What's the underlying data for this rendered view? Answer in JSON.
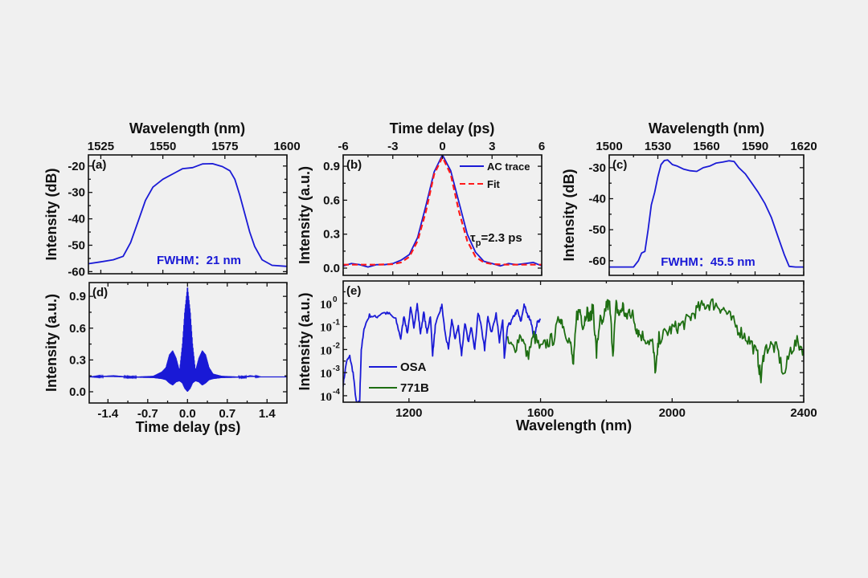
{
  "figure": {
    "background": "#f0f0f0"
  },
  "chart_data": [
    {
      "panel": "(a)",
      "type": "line",
      "xlabel": "Wavelength (nm)",
      "xaxis_position": "top",
      "ylabel": "Intensity (dB)",
      "xlim": [
        1520,
        1600
      ],
      "ylim": [
        -60.8,
        -15.8
      ],
      "xticks": [
        1525,
        1550,
        1575,
        1600
      ],
      "xtick_labels": [
        "1525",
        "1550",
        "1575",
        "1600"
      ],
      "yticks": [
        -20,
        -30,
        -40,
        -50,
        -60
      ],
      "ytick_labels": [
        "-20",
        "-30",
        "-40",
        "-50",
        "-60"
      ],
      "annotation": {
        "text": "FWHM：21 nm",
        "color": "#1a1ad6"
      },
      "series": [
        {
          "color": "#1a1ad6",
          "x": [
            1520,
            1525,
            1530,
            1534,
            1537,
            1540,
            1543,
            1546,
            1550,
            1555,
            1558,
            1562,
            1566,
            1570,
            1574,
            1577,
            1579,
            1581,
            1583,
            1585,
            1587,
            1590,
            1594,
            1600
          ],
          "y": [
            -57,
            -56.3,
            -55.5,
            -54.2,
            -49,
            -41,
            -33,
            -28,
            -25,
            -22.5,
            -21,
            -20.6,
            -19.2,
            -19.1,
            -20.2,
            -21.8,
            -25,
            -31,
            -38,
            -45,
            -50.5,
            -55.5,
            -57.6,
            -58
          ]
        }
      ]
    },
    {
      "panel": "(b)",
      "type": "line",
      "xlabel": "Time delay (ps)",
      "xaxis_position": "top",
      "ylabel": "Intensity (a.u.)",
      "xlim": [
        -6,
        6
      ],
      "ylim": [
        -0.064,
        1.0
      ],
      "xticks": [
        -6,
        -3,
        0,
        3,
        6
      ],
      "xtick_labels": [
        "-6",
        "-3",
        "0",
        "3",
        "6"
      ],
      "yticks": [
        0,
        0.3,
        0.6,
        0.9
      ],
      "ytick_labels": [
        "0.0",
        "0.3",
        "0.6",
        "0.9"
      ],
      "annotation": {
        "symbol": "τ",
        "subscript": "p",
        "text": "=2.3 ps",
        "color": "#111111"
      },
      "legend": {
        "position": "top-right"
      },
      "series": [
        {
          "name": "AC trace",
          "color": "#1a1ad6",
          "style": "solid",
          "x": [
            -6,
            -5.5,
            -5,
            -4.5,
            -4,
            -3.5,
            -3,
            -2.5,
            -2,
            -1.5,
            -1,
            -0.5,
            0,
            0.5,
            1,
            1.5,
            2,
            2.5,
            3,
            3.5,
            4,
            4.5,
            5,
            5.5,
            6
          ],
          "y": [
            0.02,
            0.04,
            0.03,
            0.01,
            0.03,
            0.03,
            0.04,
            0.07,
            0.12,
            0.27,
            0.55,
            0.85,
            1.0,
            0.86,
            0.58,
            0.3,
            0.14,
            0.06,
            0.04,
            0.02,
            0.04,
            0.03,
            0.04,
            0.05,
            0.02
          ]
        },
        {
          "name": "Fit",
          "color": "#ff1a1a",
          "style": "dashed",
          "x": [
            -6,
            -5,
            -4,
            -3,
            -2.5,
            -2,
            -1.5,
            -1,
            -0.5,
            0,
            0.5,
            1,
            1.5,
            2,
            2.5,
            3,
            4,
            5,
            6
          ],
          "y": [
            0.03,
            0.03,
            0.03,
            0.035,
            0.05,
            0.1,
            0.24,
            0.5,
            0.83,
            0.98,
            0.83,
            0.5,
            0.24,
            0.1,
            0.05,
            0.035,
            0.03,
            0.03,
            0.03
          ]
        }
      ]
    },
    {
      "panel": "(c)",
      "type": "line",
      "xlabel": "Wavelength (nm)",
      "xaxis_position": "top",
      "ylabel": "Intensity (dB)",
      "xlim": [
        1500,
        1620
      ],
      "ylim": [
        -64.7,
        -25.9
      ],
      "xticks": [
        1500,
        1530,
        1560,
        1590,
        1620
      ],
      "xtick_labels": [
        "1500",
        "1530",
        "1560",
        "1590",
        "1620"
      ],
      "yticks": [
        -30,
        -40,
        -50,
        -60
      ],
      "ytick_labels": [
        "-30",
        "-40",
        "-50",
        "-60"
      ],
      "annotation": {
        "text": "FWHM：45.5 nm",
        "color": "#1a1ad6"
      },
      "series": [
        {
          "color": "#1a1ad6",
          "x": [
            1500,
            1515,
            1518,
            1520,
            1522,
            1524,
            1526,
            1528,
            1530,
            1532,
            1534,
            1536,
            1539,
            1542,
            1546,
            1550,
            1554,
            1558,
            1562,
            1566,
            1570,
            1574,
            1577,
            1580,
            1584,
            1588,
            1592,
            1596,
            1600,
            1604,
            1608,
            1611,
            1615,
            1620
          ],
          "y": [
            -62,
            -62,
            -60,
            -57.5,
            -57,
            -50,
            -42,
            -38,
            -33,
            -29,
            -27.7,
            -27.5,
            -29,
            -29.5,
            -30.5,
            -31,
            -31.2,
            -30,
            -29.5,
            -28.5,
            -28.2,
            -27.8,
            -28,
            -30,
            -32,
            -35,
            -38,
            -41.5,
            -46,
            -52,
            -58,
            -61.8,
            -62,
            -62
          ]
        }
      ]
    },
    {
      "panel": "(d)",
      "type": "area",
      "xlabel": "Time delay (ps)",
      "xaxis_position": "bottom",
      "ylabel": "Intensity (a.u.)",
      "xlim": [
        -1.73,
        1.75
      ],
      "ylim": [
        -0.106,
        1.03
      ],
      "xticks": [
        -1.4,
        -0.7,
        0,
        0.7,
        1.4
      ],
      "xtick_labels": [
        "-1.4",
        "-0.7",
        "0.0",
        "0.7",
        "1.4"
      ],
      "yticks": [
        0,
        0.3,
        0.6,
        0.9
      ],
      "ytick_labels": [
        "0.0",
        "0.3",
        "0.6",
        "0.9"
      ],
      "series": [
        {
          "color": "#1a1ad6",
          "x": [
            -1.75,
            -1.3,
            -1.0,
            -0.6,
            -0.45,
            -0.38,
            -0.32,
            -0.26,
            -0.2,
            -0.14,
            -0.09,
            -0.05,
            0,
            0.05,
            0.09,
            0.14,
            0.2,
            0.26,
            0.32,
            0.38,
            0.45,
            0.6,
            1.0,
            1.1,
            1.3,
            1.75
          ],
          "upper": [
            0.14,
            0.155,
            0.14,
            0.15,
            0.19,
            0.23,
            0.35,
            0.39,
            0.32,
            0.2,
            0.45,
            0.75,
            1.0,
            0.75,
            0.45,
            0.2,
            0.32,
            0.39,
            0.35,
            0.23,
            0.17,
            0.15,
            0.14,
            0.155,
            0.14,
            0.14
          ],
          "lower": [
            0.14,
            0.14,
            0.135,
            0.13,
            0.12,
            0.11,
            0.08,
            0.06,
            0.09,
            0.1,
            0.08,
            0.03,
            0.0,
            0.03,
            0.08,
            0.1,
            0.09,
            0.06,
            0.08,
            0.11,
            0.12,
            0.13,
            0.135,
            0.14,
            0.14,
            0.14
          ]
        }
      ]
    },
    {
      "panel": "(e)",
      "type": "line",
      "xlabel": "Wavelength (nm)",
      "xaxis_position": "bottom",
      "ylabel": "Intensity (a.u.)",
      "yscale": "log",
      "xlim": [
        1000,
        2400
      ],
      "ylim": [
        5.25e-05,
        9.3
      ],
      "xticks": [
        1200,
        1600,
        2000,
        2400
      ],
      "xtick_labels": [
        "1200",
        "1600",
        "2000",
        "2400"
      ],
      "yticks": [
        0.0001,
        0.001,
        0.01,
        0.1,
        1
      ],
      "ytick_labels": [
        {
          "base": "10",
          "exp": "-4"
        },
        {
          "base": "10",
          "exp": "-3"
        },
        {
          "base": "10",
          "exp": "-2"
        },
        {
          "base": "10",
          "exp": "-1"
        },
        {
          "base": "10",
          "exp": "0"
        }
      ],
      "legend": {
        "position": "bottom-left"
      },
      "series": [
        {
          "name": "OSA",
          "color": "#1a1ad6",
          "x": [
            1000,
            1010,
            1020,
            1030,
            1040,
            1050,
            1055,
            1065,
            1080,
            1100,
            1120,
            1140,
            1160,
            1175,
            1185,
            1195,
            1205,
            1215,
            1225,
            1235,
            1245,
            1255,
            1265,
            1272,
            1280,
            1295,
            1300,
            1310,
            1320,
            1330,
            1340,
            1350,
            1360,
            1370,
            1380,
            1390,
            1400,
            1410,
            1420,
            1430,
            1440,
            1450,
            1465,
            1475,
            1485,
            1490,
            1500,
            1510,
            1520,
            1530,
            1540,
            1550,
            1560,
            1570,
            1580,
            1590,
            1600
          ],
          "y": [
            0.0003,
            0.003,
            0.005,
            0.001,
            5e-05,
            5e-05,
            0.01,
            0.1,
            0.3,
            0.25,
            0.4,
            0.35,
            0.2,
            0.03,
            0.3,
            0.05,
            0.6,
            0.1,
            0.9,
            0.05,
            0.4,
            0.05,
            0.3,
            0.006,
            0.1,
            0.5,
            0.8,
            0.05,
            0.01,
            0.2,
            0.03,
            0.1,
            0.006,
            0.15,
            0.02,
            0.1,
            0.01,
            0.4,
            0.1,
            0.01,
            0.3,
            0.05,
            0.4,
            0.02,
            0.2,
            0.004,
            0.1,
            0.15,
            0.3,
            0.5,
            0.15,
            0.9,
            0.3,
            0.2,
            0.03,
            0.15,
            0.2
          ]
        },
        {
          "name": "771B",
          "color": "#1e6e12",
          "x": [
            1500,
            1520,
            1540,
            1560,
            1580,
            1600,
            1620,
            1640,
            1660,
            1670,
            1690,
            1700,
            1710,
            1720,
            1730,
            1740,
            1750,
            1760,
            1770,
            1780,
            1790,
            1800,
            1810,
            1820,
            1830,
            1840,
            1850,
            1860,
            1870,
            1880,
            1890,
            1900,
            1920,
            1940,
            1950,
            1960,
            1980,
            2000,
            2020,
            2040,
            2060,
            2080,
            2100,
            2120,
            2140,
            2160,
            2180,
            2200,
            2220,
            2240,
            2260,
            2270,
            2280,
            2300,
            2320,
            2340,
            2360,
            2380,
            2400
          ],
          "y": [
            0.02,
            0.01,
            0.05,
            0.005,
            0.04,
            0.01,
            0.02,
            0.03,
            0.3,
            0.1,
            0.02,
            0.002,
            0.3,
            0.5,
            0.1,
            0.5,
            0.2,
            0.7,
            0.006,
            0.2,
            0.1,
            0.9,
            0.8,
            0.008,
            0.8,
            0.3,
            0.8,
            0.2,
            0.5,
            0.3,
            0.1,
            0.05,
            0.03,
            0.02,
            0.001,
            0.03,
            0.05,
            0.08,
            0.1,
            0.15,
            0.3,
            0.6,
            0.85,
            1.0,
            0.8,
            0.5,
            0.2,
            0.08,
            0.04,
            0.02,
            0.005,
            0.0005,
            0.01,
            0.015,
            0.01,
            0.0007,
            0.01,
            0.02,
            0.01
          ]
        }
      ]
    }
  ]
}
